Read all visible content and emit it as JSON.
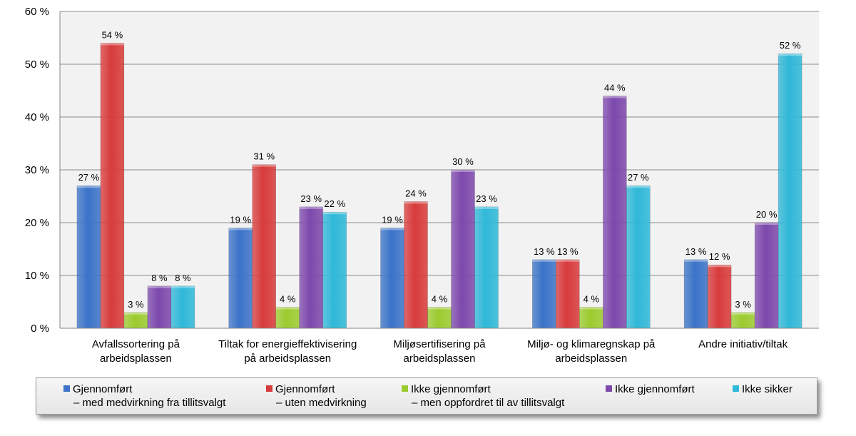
{
  "chart_data": {
    "type": "bar",
    "ylim": [
      0,
      60
    ],
    "yticks": [
      "0 %",
      "10 %",
      "20 %",
      "30 %",
      "40 %",
      "50 %",
      "60 %"
    ],
    "ytick_values": [
      0,
      10,
      20,
      30,
      40,
      50,
      60
    ],
    "grid": true,
    "legend_position": "bottom",
    "categories": [
      [
        "Avfallssortering på",
        "arbeidsplassen"
      ],
      [
        "Tiltak for energieffektivisering",
        "på arbeidsplassen"
      ],
      [
        "Miljøsertifisering på",
        "arbeidsplassen"
      ],
      [
        "Miljø- og klimaregnskap på",
        "arbeidsplassen"
      ],
      [
        "Andre initiativ/tiltak"
      ]
    ],
    "series": [
      {
        "name": "Gjennomført",
        "subname": "– med medvirkning fra tillitsvalgt",
        "color": "#3b73c8",
        "values": [
          27,
          19,
          19,
          13,
          13
        ],
        "labels": [
          "27 %",
          "19 %",
          "19 %",
          "13 %",
          "13 %"
        ]
      },
      {
        "name": "Gjennomført",
        "subname": "– uten medvirkning",
        "color": "#d83b3b",
        "values": [
          54,
          31,
          24,
          13,
          12
        ],
        "labels": [
          "54 %",
          "31 %",
          "24 %",
          "13 %",
          "12 %"
        ]
      },
      {
        "name": "Ikke gjennomført",
        "subname": "– men oppfordret til av tillitsvalgt",
        "color": "#9ccb2e",
        "values": [
          3,
          4,
          4,
          4,
          3
        ],
        "labels": [
          "3 %",
          "4 %",
          "4 %",
          "4 %",
          "3 %"
        ]
      },
      {
        "name": "Ikke gjennomført",
        "subname": "",
        "color": "#7d48ac",
        "values": [
          8,
          23,
          30,
          44,
          20
        ],
        "labels": [
          "8 %",
          "23 %",
          "30 %",
          "44 %",
          "20 %"
        ]
      },
      {
        "name": "Ikke sikker",
        "subname": "",
        "color": "#2fb8d8",
        "values": [
          8,
          22,
          23,
          27,
          52
        ],
        "labels": [
          "8 %",
          "22 %",
          "23 %",
          "27 %",
          "52 %"
        ]
      }
    ]
  }
}
